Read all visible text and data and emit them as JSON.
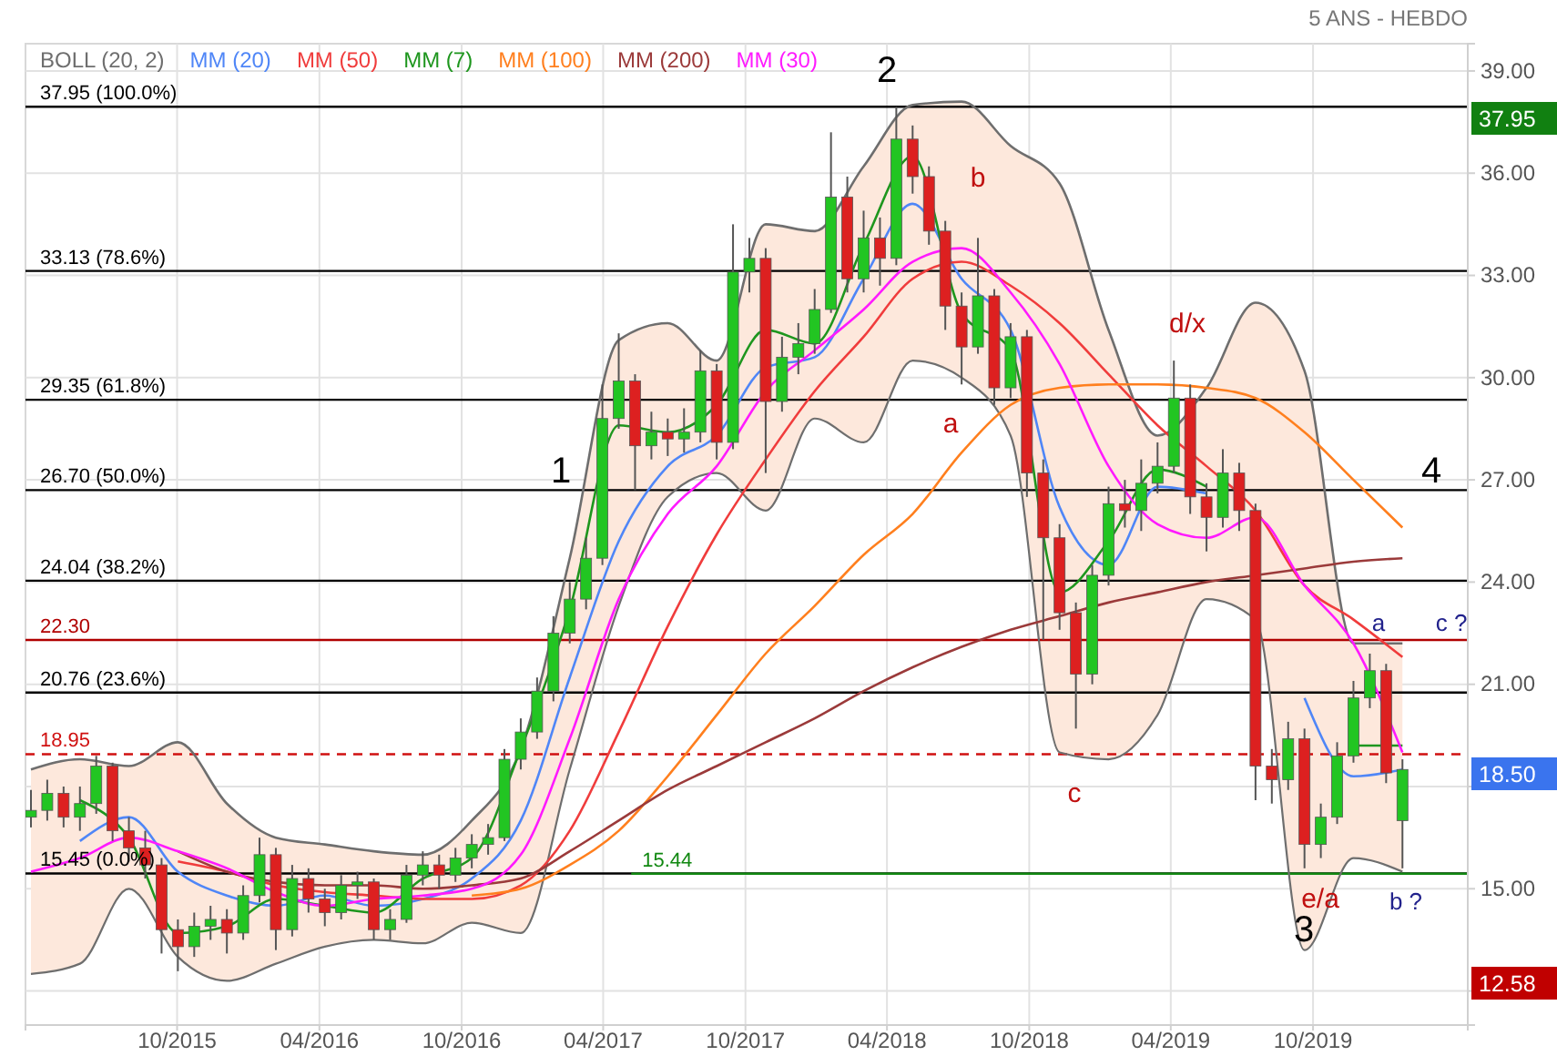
{
  "chart_data": {
    "type": "candlestick",
    "subtitle": "5 ANS - HEBDO",
    "x": [
      "2015-03-27",
      "2015-04-17",
      "2015-05-08",
      "2015-05-29",
      "2015-06-19",
      "2015-07-10",
      "2015-07-31",
      "2015-08-21",
      "2015-09-11",
      "2015-10-02",
      "2015-10-23",
      "2015-11-13",
      "2015-12-04",
      "2015-12-25",
      "2016-01-15",
      "2016-02-05",
      "2016-02-26",
      "2016-03-18",
      "2016-04-08",
      "2016-04-29",
      "2016-05-20",
      "2016-06-10",
      "2016-07-01",
      "2016-07-22",
      "2016-08-12",
      "2016-09-02",
      "2016-09-23",
      "2016-10-14",
      "2016-11-04",
      "2016-11-25",
      "2016-12-16",
      "2017-01-06",
      "2017-01-27",
      "2017-02-17",
      "2017-03-10",
      "2017-03-31",
      "2017-04-21",
      "2017-05-12",
      "2017-06-02",
      "2017-06-23",
      "2017-07-14",
      "2017-08-04",
      "2017-08-25",
      "2017-09-15",
      "2017-10-06",
      "2017-10-27",
      "2017-11-17",
      "2017-12-08",
      "2017-12-29",
      "2018-01-19",
      "2018-02-09",
      "2018-03-02",
      "2018-03-23",
      "2018-04-13",
      "2018-05-04",
      "2018-05-25",
      "2018-06-15",
      "2018-07-06",
      "2018-07-27",
      "2018-08-17",
      "2018-09-07",
      "2018-09-28",
      "2018-10-19",
      "2018-11-09",
      "2018-11-30",
      "2018-12-21",
      "2019-01-11",
      "2019-02-01",
      "2019-02-22",
      "2019-03-15",
      "2019-04-05",
      "2019-04-26",
      "2019-05-17",
      "2019-06-07",
      "2019-06-28",
      "2019-07-19",
      "2019-08-09",
      "2019-08-30",
      "2019-09-20",
      "2019-10-11",
      "2019-11-01",
      "2019-11-22",
      "2019-12-13",
      "2020-01-03",
      "2020-01-24"
    ],
    "ohlc": [
      [
        17.1,
        17.9,
        16.8,
        17.3
      ],
      [
        17.3,
        18.2,
        17.0,
        17.8
      ],
      [
        17.8,
        18.0,
        16.8,
        17.1
      ],
      [
        17.1,
        18.0,
        16.7,
        17.5
      ],
      [
        17.5,
        18.9,
        17.2,
        18.6
      ],
      [
        18.6,
        18.7,
        16.4,
        16.7
      ],
      [
        16.7,
        17.1,
        15.8,
        16.2
      ],
      [
        16.2,
        16.7,
        15.3,
        15.7
      ],
      [
        15.7,
        15.9,
        13.1,
        13.8
      ],
      [
        13.8,
        14.1,
        12.58,
        13.3
      ],
      [
        13.3,
        14.3,
        13.0,
        13.9
      ],
      [
        13.9,
        14.5,
        13.5,
        14.1
      ],
      [
        14.1,
        14.4,
        13.1,
        13.7
      ],
      [
        13.7,
        15.1,
        13.5,
        14.8
      ],
      [
        14.8,
        16.5,
        14.6,
        16.0
      ],
      [
        16.0,
        16.2,
        13.2,
        13.8
      ],
      [
        13.8,
        15.7,
        13.6,
        15.3
      ],
      [
        15.3,
        15.6,
        14.3,
        14.7
      ],
      [
        14.7,
        15.0,
        13.9,
        14.3
      ],
      [
        14.3,
        15.4,
        14.1,
        15.1
      ],
      [
        15.1,
        15.5,
        14.7,
        15.2
      ],
      [
        15.2,
        15.3,
        13.5,
        13.8
      ],
      [
        13.8,
        14.4,
        13.5,
        14.1
      ],
      [
        14.1,
        15.7,
        14.0,
        15.4
      ],
      [
        15.4,
        16.1,
        15.1,
        15.7
      ],
      [
        15.7,
        16.0,
        15.0,
        15.4
      ],
      [
        15.4,
        16.2,
        15.2,
        15.9
      ],
      [
        15.9,
        16.6,
        15.6,
        16.3
      ],
      [
        16.3,
        16.9,
        16.0,
        16.5
      ],
      [
        16.5,
        19.1,
        16.4,
        18.8
      ],
      [
        18.8,
        20.0,
        18.5,
        19.6
      ],
      [
        19.6,
        21.2,
        19.4,
        20.8
      ],
      [
        20.8,
        23.0,
        20.5,
        22.5
      ],
      [
        22.5,
        24.0,
        22.2,
        23.5
      ],
      [
        23.5,
        25.3,
        23.2,
        24.7
      ],
      [
        24.7,
        29.8,
        24.5,
        28.8
      ],
      [
        28.8,
        31.3,
        28.5,
        29.9
      ],
      [
        29.9,
        30.1,
        26.7,
        28.0
      ],
      [
        28.0,
        29.0,
        27.6,
        28.4
      ],
      [
        28.4,
        28.8,
        27.7,
        28.2
      ],
      [
        28.2,
        29.1,
        27.8,
        28.4
      ],
      [
        28.4,
        30.8,
        28.1,
        30.2
      ],
      [
        30.2,
        30.4,
        27.6,
        28.1
      ],
      [
        28.1,
        34.5,
        27.9,
        33.1
      ],
      [
        33.1,
        34.1,
        32.5,
        33.5
      ],
      [
        33.5,
        33.8,
        27.2,
        29.3
      ],
      [
        29.3,
        31.2,
        29.0,
        30.6
      ],
      [
        30.6,
        31.6,
        30.1,
        31.0
      ],
      [
        31.0,
        32.6,
        30.7,
        32.0
      ],
      [
        32.0,
        37.2,
        31.9,
        35.3
      ],
      [
        35.3,
        35.9,
        32.5,
        32.9
      ],
      [
        32.9,
        34.9,
        32.5,
        34.1
      ],
      [
        34.1,
        34.7,
        32.7,
        33.5
      ],
      [
        33.5,
        37.95,
        33.3,
        37.0
      ],
      [
        37.0,
        37.4,
        35.4,
        35.9
      ],
      [
        35.9,
        36.2,
        33.9,
        34.3
      ],
      [
        34.3,
        34.6,
        31.4,
        32.1
      ],
      [
        32.1,
        32.5,
        29.8,
        30.9
      ],
      [
        30.9,
        34.1,
        30.7,
        32.4
      ],
      [
        32.4,
        32.6,
        29.2,
        29.7
      ],
      [
        29.7,
        31.6,
        29.4,
        31.2
      ],
      [
        31.2,
        31.4,
        26.5,
        27.2
      ],
      [
        27.2,
        27.6,
        22.3,
        25.3
      ],
      [
        25.3,
        25.7,
        22.6,
        23.1
      ],
      [
        23.1,
        23.4,
        19.7,
        21.3
      ],
      [
        21.3,
        24.5,
        21.0,
        24.2
      ],
      [
        24.2,
        26.8,
        23.9,
        26.3
      ],
      [
        26.3,
        27.0,
        25.6,
        26.1
      ],
      [
        26.1,
        27.6,
        25.5,
        26.9
      ],
      [
        26.9,
        28.1,
        26.6,
        27.4
      ],
      [
        27.4,
        30.5,
        27.2,
        29.4
      ],
      [
        29.4,
        29.8,
        26.0,
        26.5
      ],
      [
        26.5,
        26.9,
        24.9,
        25.9
      ],
      [
        25.9,
        27.9,
        25.6,
        27.2
      ],
      [
        27.2,
        27.5,
        25.5,
        26.1
      ],
      [
        26.1,
        26.3,
        17.6,
        18.6
      ],
      [
        18.6,
        19.1,
        17.5,
        18.2
      ],
      [
        18.2,
        19.9,
        17.9,
        19.4
      ],
      [
        19.4,
        19.7,
        15.6,
        16.3
      ],
      [
        16.3,
        17.5,
        15.9,
        17.1
      ],
      [
        17.1,
        19.3,
        16.9,
        18.9
      ],
      [
        18.9,
        21.1,
        18.7,
        20.6
      ],
      [
        20.6,
        21.9,
        20.3,
        21.4
      ],
      [
        21.4,
        21.6,
        18.1,
        18.4
      ],
      [
        17.0,
        18.8,
        15.6,
        18.5
      ]
    ],
    "series": [
      {
        "name": "BOLL (20, 2)",
        "type": "line",
        "color": "#6e6e6e",
        "x": [
          "2015-03-27",
          "2015-05-29",
          "2015-07-31",
          "2015-10-02",
          "2015-12-04",
          "2016-02-05",
          "2016-04-08",
          "2016-06-10",
          "2016-08-12",
          "2016-10-14",
          "2016-12-16",
          "2017-02-17",
          "2017-04-21",
          "2017-06-23",
          "2017-08-25",
          "2017-10-27",
          "2017-12-29",
          "2018-03-02",
          "2018-05-04",
          "2018-07-06",
          "2018-09-07",
          "2018-11-09",
          "2019-01-11",
          "2019-03-15",
          "2019-05-17",
          "2019-07-19",
          "2019-09-20",
          "2019-11-22",
          "2020-01-24"
        ],
        "values": [
          18.5,
          18.8,
          18.6,
          19.3,
          17.5,
          16.5,
          16.3,
          16.1,
          16.0,
          17.0,
          19.1,
          24.7,
          31.1,
          31.6,
          30.5,
          34.5,
          34.3,
          36.2,
          38.0,
          38.1,
          36.8,
          35.7,
          31.4,
          28.3,
          29.7,
          32.2,
          30.2,
          22.2,
          22.2
        ],
        "upper": [
          18.5,
          18.8,
          18.6,
          19.3,
          17.5,
          16.5,
          16.3,
          16.1,
          16.0,
          17.0,
          19.1,
          24.7,
          31.1,
          31.6,
          30.5,
          34.5,
          34.3,
          36.2,
          38.0,
          38.1,
          36.8,
          35.7,
          31.4,
          28.3,
          29.7,
          32.2,
          30.2,
          22.2,
          22.2
        ],
        "lower": [
          12.5,
          12.8,
          15.0,
          13.0,
          12.3,
          12.8,
          13.3,
          13.5,
          13.4,
          14.0,
          13.7,
          18.5,
          23.3,
          26.5,
          27.2,
          26.1,
          28.8,
          28.1,
          30.5,
          30.0,
          28.3,
          19.0,
          18.8,
          20.1,
          23.5,
          22.9,
          13.2,
          15.9,
          15.5
        ]
      },
      {
        "type": "line",
        "color": "#6e6e6e",
        "x": [
          "2015-03-27",
          "2015-05-29",
          "2015-07-31",
          "2015-10-02",
          "2015-12-04",
          "2016-02-05",
          "2016-04-08",
          "2016-06-10",
          "2016-08-12",
          "2016-10-14",
          "2016-12-16",
          "2017-02-17",
          "2017-04-21",
          "2017-06-23",
          "2017-08-25",
          "2017-10-27",
          "2017-12-29",
          "2018-03-02",
          "2018-05-04",
          "2018-07-06",
          "2018-09-07",
          "2018-11-09",
          "2019-01-11",
          "2019-03-15",
          "2019-05-17",
          "2019-07-19",
          "2019-09-20",
          "2019-11-22",
          "2020-01-24"
        ],
        "values": [
          12.5,
          12.8,
          15.0,
          13.0,
          12.3,
          12.8,
          13.3,
          13.5,
          13.4,
          14.0,
          13.7,
          18.5,
          23.3,
          26.5,
          27.2,
          26.1,
          28.8,
          28.1,
          30.5,
          30.0,
          28.3,
          19.0,
          18.8,
          20.1,
          23.5,
          22.9,
          13.2,
          15.9,
          15.5
        ]
      },
      {
        "name": "MM (20)",
        "type": "line",
        "color": "#4f86f7",
        "x": [
          "2015-05-29",
          "2015-07-31",
          "2015-10-02",
          "2015-12-04",
          "2016-02-05",
          "2016-04-08",
          "2016-06-10",
          "2016-08-12",
          "2016-10-14",
          "2016-12-16",
          "2017-02-17",
          "2017-04-21",
          "2017-06-23",
          "2017-08-25",
          "2017-10-27",
          "2017-12-29",
          "2018-03-02",
          "2018-05-04",
          "2018-07-06",
          "2018-09-07",
          "2018-11-09",
          "2019-01-11",
          "2019-03-15",
          "2019-05-17",
          "2019-07-19",
          "2019-09-20",
          "2019-11-22",
          "2020-01-24"
        ],
        "values": [
          16.4,
          17.1,
          15.5,
          14.8,
          14.5,
          14.8,
          14.5,
          14.7,
          15.3,
          17.0,
          21.2,
          25.2,
          27.4,
          28.3,
          30.3,
          30.6,
          32.9,
          35.1,
          32.9,
          31.4,
          26.2,
          24.5,
          26.8,
          26.6,
          null,
          20.6,
          18.3,
          18.5
        ]
      },
      {
        "name": "MM (50)",
        "type": "line",
        "color": "#f03c3c",
        "x": [
          "2015-10-02",
          "2015-12-04",
          "2016-02-05",
          "2016-04-08",
          "2016-06-10",
          "2016-08-12",
          "2016-10-14",
          "2016-12-16",
          "2017-02-17",
          "2017-04-21",
          "2017-06-23",
          "2017-08-25",
          "2017-10-27",
          "2017-12-29",
          "2018-03-02",
          "2018-05-04",
          "2018-07-06",
          "2018-09-07",
          "2018-11-09",
          "2019-01-11",
          "2019-03-15",
          "2019-05-17",
          "2019-07-19",
          "2019-09-20",
          "2019-11-22",
          "2020-01-24"
        ],
        "values": [
          15.8,
          15.5,
          15.1,
          14.9,
          14.8,
          14.7,
          14.7,
          15.1,
          16.7,
          19.6,
          22.7,
          25.4,
          27.6,
          29.6,
          31.2,
          32.9,
          33.4,
          32.7,
          31.6,
          30.1,
          28.6,
          27.4,
          26.1,
          23.9,
          22.9,
          21.8
        ]
      },
      {
        "name": "MM (7)",
        "type": "line",
        "color": "#1e961e",
        "x": [
          "2015-05-29",
          "2015-07-31",
          "2015-10-02",
          "2015-12-04",
          "2016-02-05",
          "2016-04-08",
          "2016-06-10",
          "2016-08-12",
          "2016-10-14",
          "2016-12-16",
          "2017-02-17",
          "2017-04-21",
          "2017-06-23",
          "2017-08-25",
          "2017-10-27",
          "2017-12-29",
          "2018-03-02",
          "2018-05-04",
          "2018-07-06",
          "2018-09-07",
          "2018-11-09",
          "2019-01-11",
          "2019-03-15",
          "2019-05-17",
          "2019-07-19",
          "2019-09-20",
          "2019-11-22",
          "2020-01-24"
        ],
        "values": [
          17.6,
          16.5,
          13.7,
          13.9,
          14.7,
          14.5,
          14.3,
          15.3,
          15.9,
          19.1,
          23.2,
          28.6,
          28.4,
          29.2,
          31.4,
          31.0,
          33.9,
          36.5,
          31.9,
          30.8,
          23.7,
          25.2,
          27.3,
          26.8,
          null,
          null,
          19.2,
          19.2
        ]
      },
      {
        "name": "MM (100)",
        "type": "line",
        "color": "#ff7f1e",
        "x": [
          "2016-10-14",
          "2016-12-16",
          "2017-02-17",
          "2017-04-21",
          "2017-06-23",
          "2017-08-25",
          "2017-10-27",
          "2017-12-29",
          "2018-03-02",
          "2018-05-04",
          "2018-07-06",
          "2018-09-07",
          "2018-11-09",
          "2019-01-11",
          "2019-03-15",
          "2019-05-17",
          "2019-07-19",
          "2019-09-20",
          "2019-11-22",
          "2020-01-24"
        ],
        "values": [
          14.8,
          15.0,
          15.7,
          16.7,
          18.3,
          20.1,
          21.9,
          23.3,
          24.8,
          26.0,
          27.8,
          29.2,
          29.7,
          29.8,
          29.8,
          29.7,
          29.4,
          28.4,
          27.0,
          25.6
        ]
      },
      {
        "name": "MM (200)",
        "type": "line",
        "color": "#9b3a3a",
        "x": [
          "2015-10-02",
          "2015-12-04",
          "2016-02-05",
          "2016-04-08",
          "2016-06-10",
          "2016-08-12",
          "2016-10-14",
          "2016-12-16",
          "2017-02-17",
          "2017-04-21",
          "2017-06-23",
          "2017-08-25",
          "2017-10-27",
          "2017-12-29",
          "2018-03-02",
          "2018-05-04",
          "2018-07-06",
          "2018-09-07",
          "2018-11-09",
          "2019-01-11",
          "2019-03-15",
          "2019-05-17",
          "2019-07-19",
          "2019-09-20",
          "2019-11-22",
          "2020-01-24"
        ],
        "values": [
          16.1,
          15.5,
          15.2,
          15.1,
          15.1,
          15.0,
          15.1,
          15.3,
          16.1,
          17.0,
          17.9,
          18.6,
          19.3,
          20.0,
          20.8,
          21.5,
          22.1,
          22.6,
          23.0,
          23.4,
          23.7,
          24.0,
          24.2,
          24.4,
          24.6,
          24.7
        ]
      },
      {
        "name": "MM (30)",
        "type": "line",
        "color": "#ff1aff",
        "x": [
          "2015-03-27",
          "2015-05-29",
          "2015-07-31",
          "2015-10-02",
          "2015-12-04",
          "2016-02-05",
          "2016-04-08",
          "2016-06-10",
          "2016-08-12",
          "2016-10-14",
          "2016-12-16",
          "2017-02-17",
          "2017-04-21",
          "2017-06-23",
          "2017-08-25",
          "2017-10-27",
          "2017-12-29",
          "2018-03-02",
          "2018-05-04",
          "2018-07-06",
          "2018-09-07",
          "2018-11-09",
          "2019-01-11",
          "2019-03-15",
          "2019-05-17",
          "2019-07-19",
          "2019-09-20",
          "2019-11-22",
          "2020-01-24"
        ],
        "values": [
          15.5,
          15.9,
          16.5,
          16.1,
          15.6,
          14.9,
          14.5,
          14.7,
          14.8,
          15.0,
          16.0,
          19.4,
          23.5,
          26.0,
          27.4,
          29.6,
          30.8,
          32.0,
          33.4,
          33.8,
          32.5,
          30.4,
          27.4,
          25.7,
          25.3,
          25.9,
          23.9,
          22.2,
          19.0
        ]
      }
    ],
    "xlim": [
      "2015-03-20",
      "2020-04-17"
    ],
    "xticks": [
      {
        "value": "2015-10",
        "label": "10/2015"
      },
      {
        "value": "2016-04",
        "label": "04/2016"
      },
      {
        "value": "2016-10",
        "label": "10/2016"
      },
      {
        "value": "2017-04",
        "label": "04/2017"
      },
      {
        "value": "2017-10",
        "label": "10/2017"
      },
      {
        "value": "2018-04",
        "label": "04/2018"
      },
      {
        "value": "2018-10",
        "label": "10/2018"
      },
      {
        "value": "2019-04",
        "label": "04/2019"
      },
      {
        "value": "2019-10",
        "label": "10/2019"
      }
    ],
    "ylim": [
      11.0,
      39.8
    ],
    "yticks": [
      {
        "value": 12,
        "label": null
      },
      {
        "value": 15,
        "label": "15.00"
      },
      {
        "value": 18,
        "label": null
      },
      {
        "value": 21,
        "label": "21.00"
      },
      {
        "value": 24,
        "label": "24.00"
      },
      {
        "value": 27,
        "label": "27.00"
      },
      {
        "value": 30,
        "label": "30.00"
      },
      {
        "value": 33,
        "label": "33.00"
      },
      {
        "value": 36,
        "label": "36.00"
      },
      {
        "value": 39,
        "label": "39.00"
      }
    ],
    "ref_lines": [
      {
        "axis": "y",
        "value": 37.95,
        "label": "37.95  (100.0%)",
        "color": "#000000"
      },
      {
        "axis": "y",
        "value": 33.13,
        "label": "33.13  (78.6%)",
        "color": "#000000"
      },
      {
        "axis": "y",
        "value": 29.35,
        "label": "29.35  (61.8%)",
        "color": "#000000"
      },
      {
        "axis": "y",
        "value": 26.7,
        "label": "26.70  (50.0%)",
        "color": "#000000"
      },
      {
        "axis": "y",
        "value": 24.04,
        "label": "24.04  (38.2%)",
        "color": "#000000"
      },
      {
        "axis": "y",
        "value": 22.3,
        "label": "22.30",
        "color": "#b00000"
      },
      {
        "axis": "y",
        "value": 20.76,
        "label": "20.76  (23.6%)",
        "color": "#000000"
      },
      {
        "axis": "y",
        "value": 18.95,
        "label": "18.95",
        "color": "#d01010",
        "line_style": "dashed"
      },
      {
        "axis": "y",
        "value": 15.45,
        "label": "15.45  (0.0%)",
        "color": "#000000"
      },
      {
        "axis": "y",
        "value": 15.44,
        "label": "15.44",
        "color": "#118811"
      }
    ],
    "annotations": [
      "2",
      "1",
      "4",
      "3",
      "b",
      "a",
      "d/x",
      "c",
      "a",
      "c ?",
      "e/a",
      "b ?",
      "37.95",
      "18.50",
      "12.58"
    ],
    "grid": true,
    "legend": "top left"
  }
}
